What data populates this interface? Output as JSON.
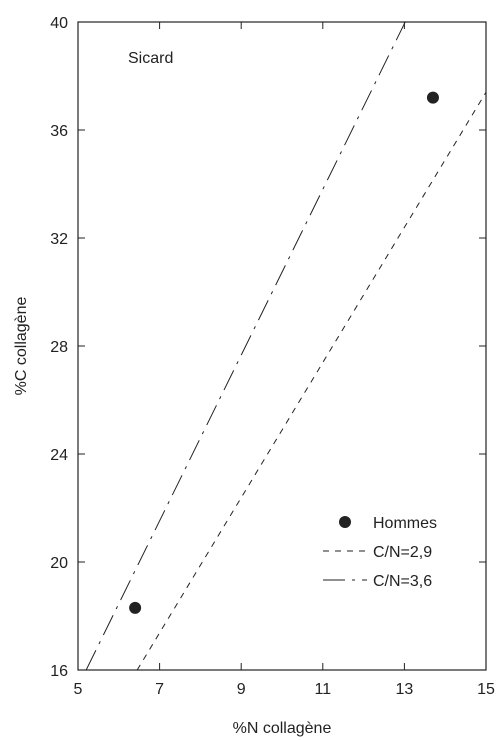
{
  "chart_data": {
    "type": "scatter",
    "title": "",
    "annotation": "Sicard",
    "xlabel": "%N collagène",
    "ylabel": "%C collagène",
    "xlim": [
      5,
      15
    ],
    "ylim": [
      16,
      40
    ],
    "x_ticks": [
      5,
      7,
      9,
      11,
      13,
      15
    ],
    "y_ticks": [
      16,
      20,
      24,
      28,
      32,
      36,
      40
    ],
    "grid": false,
    "legend_position": "bottom-right",
    "series": [
      {
        "name": "Hommes",
        "kind": "points",
        "marker": "filled-circle",
        "points": [
          {
            "x": 6.4,
            "y": 18.3
          },
          {
            "x": 13.7,
            "y": 37.2
          }
        ]
      },
      {
        "name": "C/N=2,9",
        "kind": "line",
        "style": "short-dash",
        "points": [
          {
            "x": 6.45,
            "y": 16.0
          },
          {
            "x": 15.0,
            "y": 37.4
          }
        ]
      },
      {
        "name": "C/N=3,6",
        "kind": "line",
        "style": "long-dash-dot",
        "points": [
          {
            "x": 5.2,
            "y": 16.0
          },
          {
            "x": 13.15,
            "y": 40.4
          }
        ]
      }
    ]
  }
}
